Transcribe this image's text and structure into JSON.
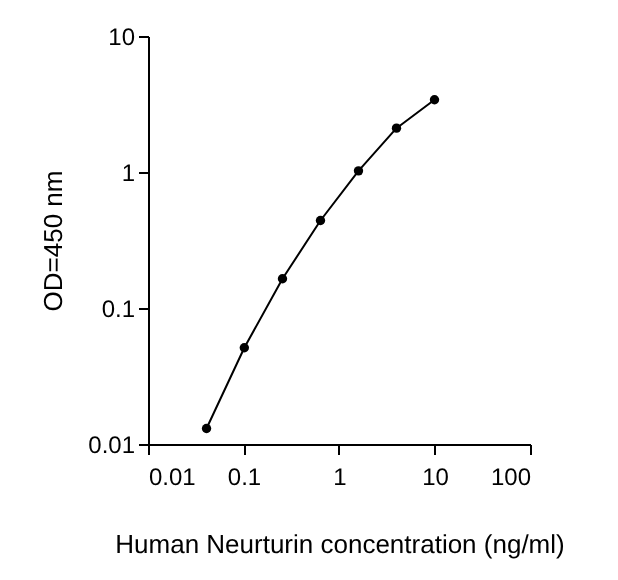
{
  "chart_data": {
    "type": "line",
    "xlabel": "Human Neurturin concentration (ng/ml)",
    "ylabel": "OD=450 nm",
    "x": [
      0.041,
      0.102,
      0.256,
      0.64,
      1.6,
      4,
      10
    ],
    "series": [
      {
        "color": "#000000",
        "values": [
          0.013,
          0.051,
          0.164,
          0.44,
          1.02,
          2.1,
          3.4
        ]
      }
    ],
    "xlim": [
      0.01,
      100
    ],
    "xticks": [
      0.01,
      0.1,
      1,
      10,
      100
    ],
    "ylim": [
      0.01,
      10
    ],
    "yticks": [
      0.01,
      0.1,
      1,
      10
    ],
    "log": "xy",
    "grid": false,
    "marker": "circle",
    "line_style": "solid"
  }
}
